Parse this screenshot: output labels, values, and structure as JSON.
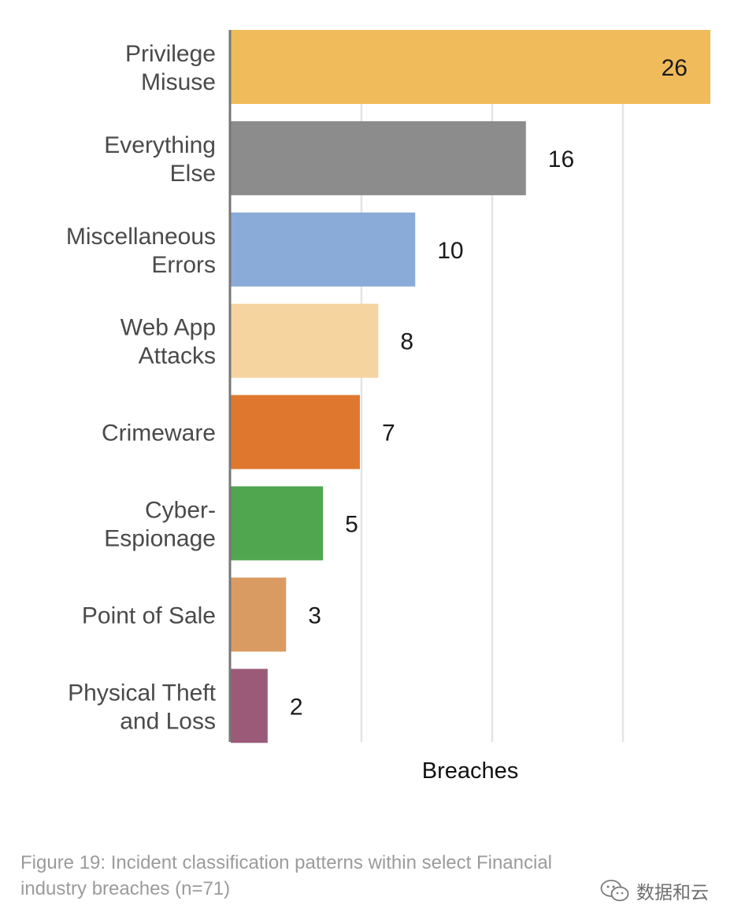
{
  "chart_data": {
    "type": "bar",
    "orientation": "horizontal",
    "categories": [
      [
        "Privilege",
        "Misuse"
      ],
      [
        "Everything",
        "Else"
      ],
      [
        "Miscellaneous",
        "Errors"
      ],
      [
        "Web App",
        "Attacks"
      ],
      [
        "Crimeware"
      ],
      [
        "Cyber-",
        "Espionage"
      ],
      [
        "Point of Sale"
      ],
      [
        "Physical Theft",
        "and Loss"
      ]
    ],
    "values": [
      26,
      16,
      10,
      8,
      7,
      5,
      3,
      2
    ],
    "colors": [
      "#f0bb5a",
      "#8c8c8c",
      "#8aabd8",
      "#f6d4a0",
      "#e0772f",
      "#4fa64e",
      "#da9b63",
      "#9b5b78"
    ],
    "xlabel": "Breaches",
    "ylabel": "",
    "xlim": [
      0,
      26
    ],
    "grid": "vertical lines",
    "legend": "none",
    "value_labels": "outside bar end; inside for the longest bar"
  },
  "caption": {
    "line1": "Figure 19: Incident classification patterns within select Financial",
    "line2": "industry breaches (n=71)"
  },
  "watermark": {
    "text": "数据和云",
    "icon": "wechat-icon"
  }
}
